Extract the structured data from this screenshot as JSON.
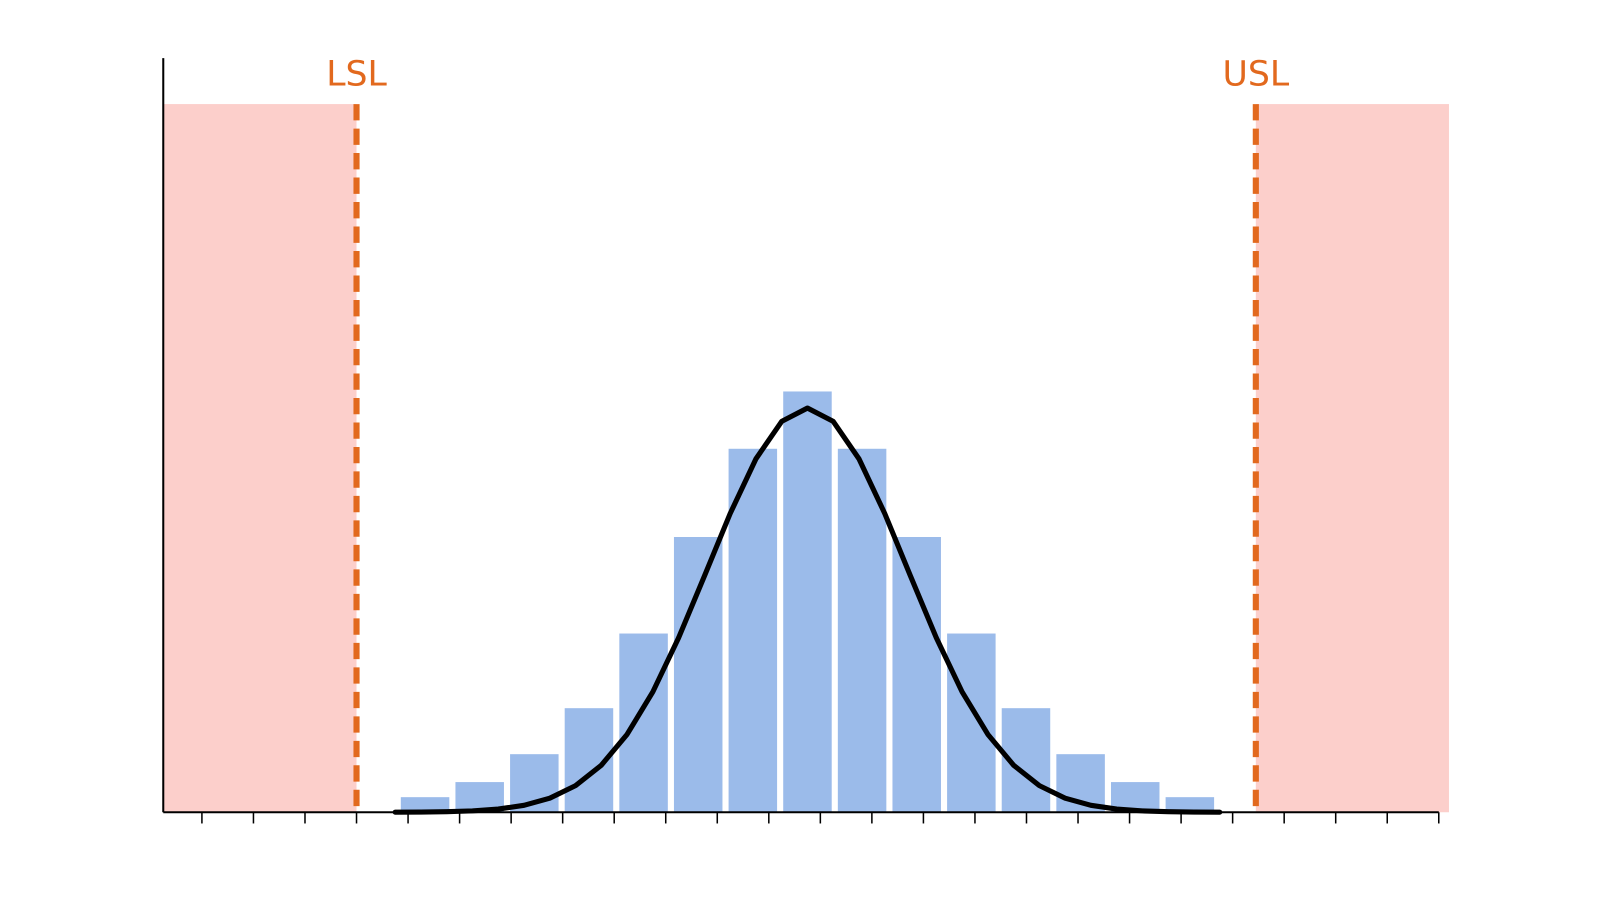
{
  "chart_data": {
    "type": "histogram",
    "bins": [
      3.8,
      4.86,
      5.92,
      6.98,
      8.04,
      9.1,
      10.16,
      11.22,
      12.28,
      13.34,
      14.4,
      15.46,
      16.52,
      17.58,
      18.64,
      19.7
    ],
    "values": [
      2,
      4,
      7.7,
      13.8,
      23.7,
      36.5,
      48.2,
      55.8,
      48.2,
      36.5,
      23.7,
      13.8,
      7.7,
      4,
      2
    ],
    "color": "#9bbbea",
    "curve": {
      "color": "#000000",
      "x": [
        3.75,
        4.25,
        4.75,
        5.25,
        5.75,
        6.25,
        6.75,
        7.25,
        7.75,
        8.25,
        8.75,
        9.25,
        9.75,
        10.25,
        10.75,
        11.25,
        11.75,
        12.25,
        12.75,
        13.25,
        13.75,
        14.25,
        14.75,
        15.25,
        15.75,
        16.25,
        16.75,
        17.25,
        17.75,
        18.25,
        18.75,
        19.25,
        19.75
      ],
      "values": [
        0.01,
        0.03,
        0.07,
        0.18,
        0.42,
        0.92,
        1.86,
        3.53,
        6.24,
        10.33,
        15.97,
        23.14,
        31.31,
        39.61,
        46.86,
        51.83,
        53.6,
        51.83,
        46.86,
        39.61,
        31.31,
        23.14,
        15.97,
        10.33,
        6.24,
        3.53,
        1.86,
        0.92,
        0.42,
        0.18,
        0.07,
        0.03,
        0.01
      ]
    },
    "spec_limits": [
      {
        "name": "LSL",
        "value": 3
      },
      {
        "name": "USL",
        "value": 20.45
      }
    ],
    "spec_color": "#e2691e",
    "reject_zone_color": "#fccfcb",
    "xlim": [
      -0.75,
      24
    ],
    "xticks": [
      0,
      1,
      2,
      3,
      4,
      5,
      6,
      7,
      8,
      9,
      10,
      11,
      12,
      13,
      14,
      15,
      16,
      17,
      18,
      19,
      20,
      21,
      22,
      23,
      24
    ],
    "ylim": [
      0,
      100
    ]
  }
}
